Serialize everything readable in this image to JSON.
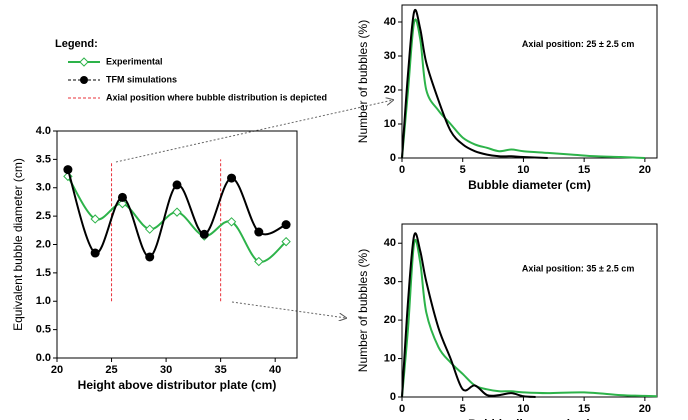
{
  "chart_data": [
    {
      "type": "line",
      "xlabel": "Height above distributor plate (cm)",
      "ylabel": "Equivalent bubble diameter (cm)",
      "legend_title": "Legend:",
      "reference_line_label": "Axial position where bubble distribution is depicted",
      "reference_line_color": "#e8303a",
      "reference_lines": [
        {
          "x": 25,
          "ylim": [
            1.0,
            3.45
          ]
        },
        {
          "x": 35,
          "ylim": [
            1.0,
            3.5
          ]
        }
      ],
      "xlim": [
        20,
        42
      ],
      "xticks": [
        20,
        25,
        30,
        35,
        40
      ],
      "ylim": [
        0,
        4
      ],
      "yticks": [
        {
          "value": 0,
          "label": "0.0"
        },
        {
          "value": 0.5,
          "label": "0.5"
        },
        {
          "value": 1,
          "label": "1.0"
        },
        {
          "value": 1.5,
          "label": "1.5"
        },
        {
          "value": 2,
          "label": "2.0"
        },
        {
          "value": 2.5,
          "label": "2.5"
        },
        {
          "value": 3,
          "label": "3.0"
        },
        {
          "value": 3.5,
          "label": "3.5"
        },
        {
          "value": 4,
          "label": "4.0"
        }
      ],
      "series": [
        {
          "name": "Experimental",
          "color": "#2db34a",
          "marker": "diamond",
          "x": [
            21,
            23.5,
            26,
            28.5,
            31,
            33.5,
            36,
            38.5,
            41
          ],
          "values": [
            3.2,
            2.45,
            2.72,
            2.27,
            2.57,
            2.15,
            2.4,
            1.7,
            2.05
          ]
        },
        {
          "name": "TFM simulations",
          "color": "#000000",
          "marker": "circle",
          "x": [
            21,
            23.5,
            26,
            28.5,
            31,
            33.5,
            36,
            38.5,
            41
          ],
          "values": [
            3.32,
            1.85,
            2.83,
            1.78,
            3.05,
            2.18,
            3.17,
            2.22,
            2.35
          ]
        }
      ]
    },
    {
      "type": "line",
      "xlabel": "Bubble diameter (cm)",
      "ylabel": "Number of bubbles  (%)",
      "annotation": "Axial position: 25 ± 2.5 cm",
      "xlim": [
        0,
        21
      ],
      "xticks": [
        0,
        5,
        10,
        15,
        20
      ],
      "ylim": [
        0,
        45
      ],
      "yticks": [
        0,
        10,
        20,
        30,
        40
      ],
      "series": [
        {
          "name": "Experimental",
          "color": "#2db34a",
          "x": [
            0,
            0.5,
            1,
            1.5,
            2,
            3,
            4,
            5,
            6,
            7,
            8,
            9,
            10,
            12,
            14,
            16,
            18,
            20
          ],
          "values": [
            0,
            20,
            40,
            35,
            20,
            14,
            10,
            6,
            4,
            3,
            2,
            2.5,
            2,
            1.5,
            1,
            0.5,
            0.3,
            0
          ]
        },
        {
          "name": "TFM simulations",
          "color": "#000000",
          "x": [
            0,
            0.5,
            1,
            1.5,
            2,
            3,
            4,
            5,
            6,
            7,
            8,
            9,
            10,
            12
          ],
          "values": [
            0,
            25,
            43,
            38,
            28,
            17,
            8,
            4,
            2,
            1,
            0.5,
            0.5,
            0.3,
            0
          ]
        }
      ]
    },
    {
      "type": "line",
      "xlabel": "Bubble diameter (cm)",
      "ylabel": "Number of bubbles  (%)",
      "annotation": "Axial position: 35 ± 2.5 cm",
      "xlim": [
        0,
        21
      ],
      "xticks": [
        0,
        5,
        10,
        15,
        20
      ],
      "ylim": [
        0,
        45
      ],
      "yticks": [
        0,
        10,
        20,
        30,
        40
      ],
      "series": [
        {
          "name": "Experimental",
          "color": "#2db34a",
          "x": [
            0,
            0.5,
            1,
            1.5,
            2,
            3,
            4,
            5,
            6,
            7,
            8,
            9,
            10,
            12,
            15,
            18,
            20,
            21
          ],
          "values": [
            0,
            18,
            40,
            35,
            22,
            13,
            9,
            6,
            3,
            2,
            1.5,
            1.5,
            1.2,
            1,
            1.2,
            0.5,
            0.3,
            0.2
          ]
        },
        {
          "name": "TFM simulations",
          "color": "#000000",
          "x": [
            0,
            0.5,
            1,
            1.5,
            2,
            3,
            4,
            5,
            6,
            7,
            8,
            9,
            10,
            11
          ],
          "values": [
            0,
            25,
            42,
            38,
            30,
            18,
            10,
            2,
            3,
            0.5,
            0.5,
            1,
            0.2,
            0
          ]
        }
      ]
    }
  ]
}
